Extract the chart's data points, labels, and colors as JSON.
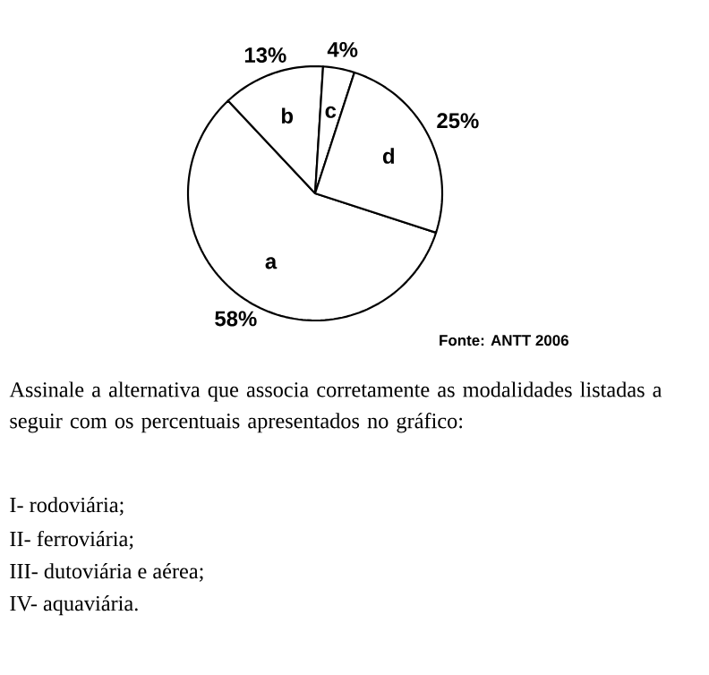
{
  "chart_data": {
    "type": "pie",
    "categories": [
      "a",
      "b",
      "c",
      "d"
    ],
    "values": [
      58,
      13,
      4,
      25
    ],
    "colors": [
      "#ffffff",
      "#ffffff",
      "#ffffff",
      "#ffffff"
    ],
    "value_labels": [
      "58%",
      "13%",
      "4%",
      "25%"
    ],
    "annotations": [
      "Fonte: ANTT 2006",
      "Assinale a alternativa que associa corretamente as modalidades listadas a seguir com os percentuais apresentados no gráfico:",
      "I- rodoviária;",
      "II- ferroviária;",
      "III- dutoviária e aérea;",
      "IV- aquaviária."
    ]
  }
}
